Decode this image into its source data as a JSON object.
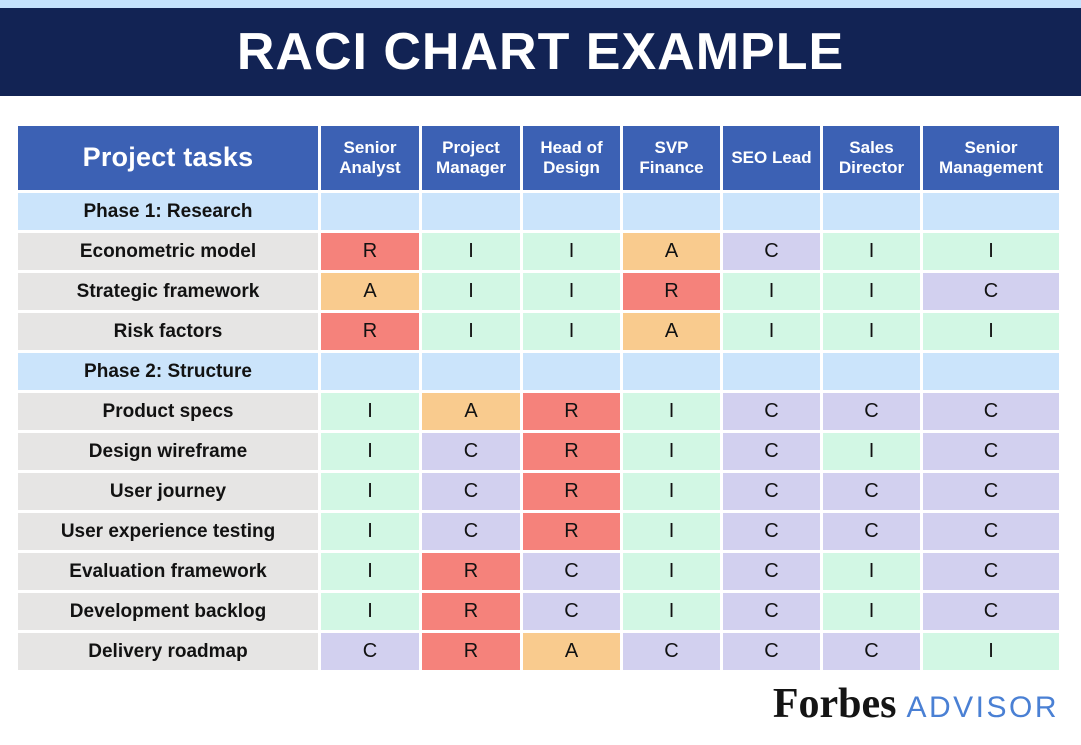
{
  "banner": {
    "title": "RACI CHART EXAMPLE"
  },
  "chart_data": {
    "type": "table",
    "title": "RACI CHART EXAMPLE",
    "task_column_header": "Project tasks",
    "columns": [
      "Senior Analyst",
      "Project Manager",
      "Head of Design",
      "SVP Finance",
      "SEO Lead",
      "Sales Director",
      "Senior Management"
    ],
    "rows": [
      {
        "phase": "Phase 1: Research"
      },
      {
        "task": "Econometric model",
        "values": [
          "R",
          "I",
          "I",
          "A",
          "C",
          "I",
          "I"
        ]
      },
      {
        "task": "Strategic framework",
        "values": [
          "A",
          "I",
          "I",
          "R",
          "I",
          "I",
          "C"
        ]
      },
      {
        "task": "Risk factors",
        "values": [
          "R",
          "I",
          "I",
          "A",
          "I",
          "I",
          "I"
        ]
      },
      {
        "phase": "Phase 2: Structure"
      },
      {
        "task": "Product specs",
        "values": [
          "I",
          "A",
          "R",
          "I",
          "C",
          "C",
          "C"
        ]
      },
      {
        "task": "Design wireframe",
        "values": [
          "I",
          "C",
          "R",
          "I",
          "C",
          "I",
          "C"
        ]
      },
      {
        "task": "User journey",
        "values": [
          "I",
          "C",
          "R",
          "I",
          "C",
          "C",
          "C"
        ]
      },
      {
        "task": "User experience testing",
        "values": [
          "I",
          "C",
          "R",
          "I",
          "C",
          "C",
          "C"
        ]
      },
      {
        "task": "Evaluation framework",
        "values": [
          "I",
          "R",
          "C",
          "I",
          "C",
          "I",
          "C"
        ]
      },
      {
        "task": "Development backlog",
        "values": [
          "I",
          "R",
          "C",
          "I",
          "C",
          "I",
          "C"
        ]
      },
      {
        "task": "Delivery roadmap",
        "values": [
          "C",
          "R",
          "A",
          "C",
          "C",
          "C",
          "I"
        ]
      }
    ]
  },
  "colors": {
    "top_strip": "#c4e1fc",
    "banner_bg": "#122354",
    "header_bg": "#3c61b4",
    "phase_row_bg": "#cbe4fb",
    "task_cell_bg": "#e6e5e4",
    "advisor_text": "#4a80d4",
    "code_colors": {
      "R": "#f5827b",
      "A": "#f9cb8e",
      "C": "#d2d0ef",
      "I": "#d2f7e4"
    }
  },
  "footer": {
    "brand": "Forbes",
    "brand_suffix": "ADVISOR"
  }
}
